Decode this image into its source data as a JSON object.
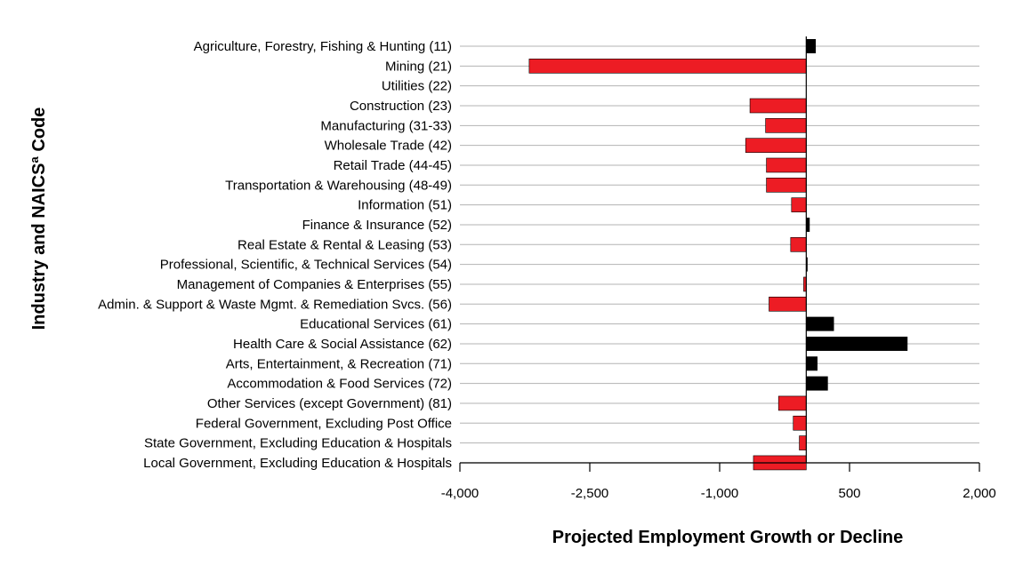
{
  "chart_data": {
    "type": "bar",
    "orientation": "horizontal",
    "xlabel": "Projected Employment Growth or Decline",
    "ylabel": "Industry and NAICSª Code",
    "xlim": [
      -4000,
      2000
    ],
    "xticks": [
      -4000,
      -2500,
      -1000,
      500,
      2000
    ],
    "xtick_labels": [
      "-4,000",
      "-2,500",
      "-1,000",
      "500",
      "2,000"
    ],
    "grid": true,
    "legend": "none",
    "colors": {
      "positive": "#000000",
      "negative": "#ed1c24"
    },
    "categories": [
      "Agriculture, Forestry, Fishing & Hunting (11)",
      "Mining (21)",
      "Utilities (22)",
      "Construction (23)",
      "Manufacturing (31-33)",
      "Wholesale Trade (42)",
      "Retail Trade (44-45)",
      "Transportation & Warehousing (48-49)",
      "Information (51)",
      "Finance & Insurance (52)",
      "Real Estate & Rental & Leasing (53)",
      "Professional, Scientific, & Technical Services (54)",
      "Management of Companies & Enterprises (55)",
      "Admin. & Support & Waste Mgmt. & Remediation Svcs. (56)",
      "Educational Services (61)",
      "Health Care & Social Assistance (62)",
      "Arts, Entertainment, & Recreation (71)",
      "Accommodation & Food Services (72)",
      "Other Services (except Government) (81)",
      "Federal Government, Excluding Post Office",
      "State Government, Excluding Education & Hospitals",
      "Local Government, Excluding Education & Hospitals"
    ],
    "values": [
      110,
      -3200,
      0,
      -650,
      -470,
      -700,
      -460,
      -460,
      -170,
      40,
      -180,
      10,
      -30,
      -430,
      320,
      1170,
      130,
      250,
      -320,
      -150,
      -80,
      -610
    ]
  }
}
